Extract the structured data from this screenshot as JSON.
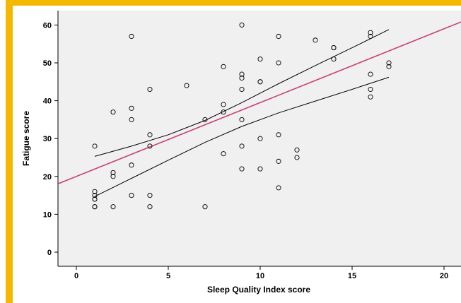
{
  "chart_data": {
    "type": "scatter",
    "title": "",
    "xlabel": "Sleep  Quality Index score",
    "ylabel": "Fatigue score",
    "xlim": [
      -1,
      21
    ],
    "ylim": [
      -2,
      64
    ],
    "xticks": [
      0,
      5,
      10,
      15,
      20
    ],
    "yticks": [
      0,
      10,
      20,
      30,
      40,
      50,
      60
    ],
    "grid": false,
    "legend": "none",
    "colors": {
      "frame_border": "#f5b800",
      "plot_background": "#f0f0f0",
      "points": "#000000",
      "fit_line": "#c8407a",
      "confidence_band": "#000000"
    },
    "points": [
      {
        "x": 1,
        "y": 28
      },
      {
        "x": 1,
        "y": 16
      },
      {
        "x": 1,
        "y": 15
      },
      {
        "x": 1,
        "y": 14
      },
      {
        "x": 1,
        "y": 14
      },
      {
        "x": 1,
        "y": 12
      },
      {
        "x": 1,
        "y": 12
      },
      {
        "x": 2,
        "y": 37
      },
      {
        "x": 2,
        "y": 21
      },
      {
        "x": 2,
        "y": 20
      },
      {
        "x": 2,
        "y": 12
      },
      {
        "x": 3,
        "y": 57
      },
      {
        "x": 3,
        "y": 38
      },
      {
        "x": 3,
        "y": 35
      },
      {
        "x": 3,
        "y": 23
      },
      {
        "x": 3,
        "y": 15
      },
      {
        "x": 4,
        "y": 43
      },
      {
        "x": 4,
        "y": 31
      },
      {
        "x": 4,
        "y": 28
      },
      {
        "x": 4,
        "y": 15
      },
      {
        "x": 4,
        "y": 12
      },
      {
        "x": 6,
        "y": 44
      },
      {
        "x": 7,
        "y": 35
      },
      {
        "x": 7,
        "y": 12
      },
      {
        "x": 8,
        "y": 49
      },
      {
        "x": 8,
        "y": 39
      },
      {
        "x": 8,
        "y": 37
      },
      {
        "x": 8,
        "y": 26
      },
      {
        "x": 9,
        "y": 60
      },
      {
        "x": 9,
        "y": 47
      },
      {
        "x": 9,
        "y": 46
      },
      {
        "x": 9,
        "y": 43
      },
      {
        "x": 9,
        "y": 35
      },
      {
        "x": 9,
        "y": 28
      },
      {
        "x": 9,
        "y": 22
      },
      {
        "x": 10,
        "y": 51
      },
      {
        "x": 10,
        "y": 45
      },
      {
        "x": 10,
        "y": 45
      },
      {
        "x": 10,
        "y": 30
      },
      {
        "x": 10,
        "y": 22
      },
      {
        "x": 11,
        "y": 57
      },
      {
        "x": 11,
        "y": 50
      },
      {
        "x": 11,
        "y": 31
      },
      {
        "x": 11,
        "y": 24
      },
      {
        "x": 11,
        "y": 17
      },
      {
        "x": 12,
        "y": 27
      },
      {
        "x": 12,
        "y": 25
      },
      {
        "x": 13,
        "y": 56
      },
      {
        "x": 14,
        "y": 54
      },
      {
        "x": 14,
        "y": 54
      },
      {
        "x": 14,
        "y": 51
      },
      {
        "x": 16,
        "y": 58
      },
      {
        "x": 16,
        "y": 57
      },
      {
        "x": 16,
        "y": 47
      },
      {
        "x": 16,
        "y": 43
      },
      {
        "x": 16,
        "y": 41
      },
      {
        "x": 17,
        "y": 50
      },
      {
        "x": 17,
        "y": 49
      }
    ],
    "fit_line": {
      "intercept": 20,
      "slope": 1.95
    },
    "confidence_band": {
      "upper": [
        {
          "x": 1,
          "y": 25.3
        },
        {
          "x": 3,
          "y": 28.0
        },
        {
          "x": 5,
          "y": 31.0
        },
        {
          "x": 7,
          "y": 34.8
        },
        {
          "x": 9,
          "y": 39.5
        },
        {
          "x": 11,
          "y": 44.5
        },
        {
          "x": 13,
          "y": 49.3
        },
        {
          "x": 15,
          "y": 54.0
        },
        {
          "x": 17,
          "y": 58.8
        }
      ],
      "lower": [
        {
          "x": 1,
          "y": 14.7
        },
        {
          "x": 3,
          "y": 19.5
        },
        {
          "x": 5,
          "y": 24.3
        },
        {
          "x": 7,
          "y": 29.0
        },
        {
          "x": 9,
          "y": 33.2
        },
        {
          "x": 11,
          "y": 36.8
        },
        {
          "x": 13,
          "y": 39.9
        },
        {
          "x": 15,
          "y": 43.0
        },
        {
          "x": 17,
          "y": 46.2
        }
      ]
    }
  }
}
